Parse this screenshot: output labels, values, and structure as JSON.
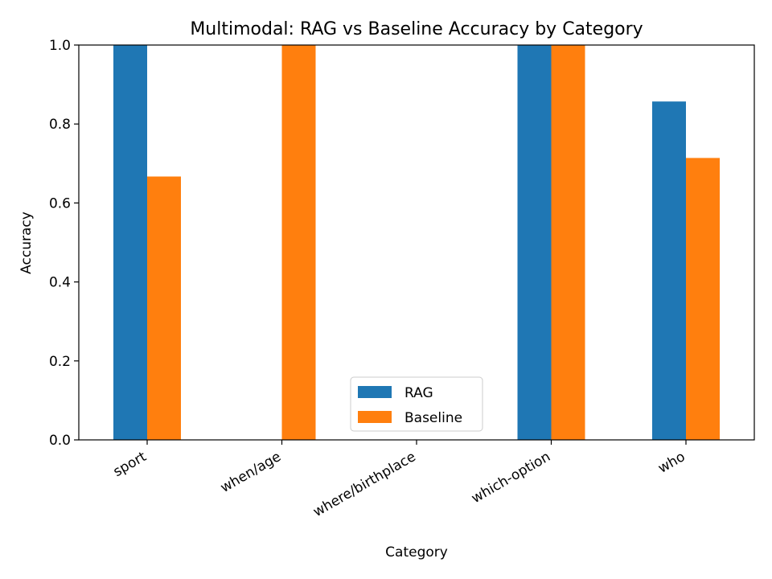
{
  "chart_data": {
    "type": "bar",
    "title": "Multimodal: RAG vs Baseline Accuracy by Category",
    "xlabel": "Category",
    "ylabel": "Accuracy",
    "categories": [
      "sport",
      "when/age",
      "where/birthplace",
      "which-option",
      "who"
    ],
    "series": [
      {
        "name": "RAG",
        "color": "#1f77b4",
        "values": [
          1.0,
          0.0,
          0.0,
          1.0,
          0.857
        ]
      },
      {
        "name": "Baseline",
        "color": "#ff7f0e",
        "values": [
          0.667,
          1.0,
          0.0,
          1.0,
          0.714
        ]
      }
    ],
    "ylim": [
      0,
      1.0
    ],
    "yticks": [
      "0.0",
      "0.2",
      "0.4",
      "0.6",
      "0.8",
      "1.0"
    ],
    "grid": false,
    "legend_position": "bottom-center"
  }
}
